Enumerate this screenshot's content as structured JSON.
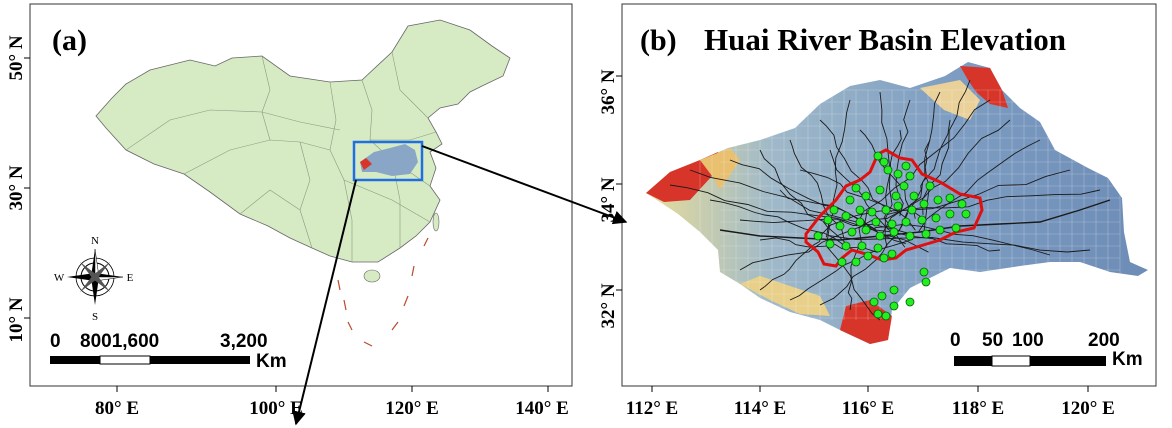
{
  "panel_a": {
    "label": "(a)",
    "x_ticks": [
      "80° E",
      "100° E",
      "120° E",
      "140° E"
    ],
    "y_ticks": [
      "50° N",
      "30° N",
      "10° N"
    ],
    "scale_labels": [
      "0",
      "8001,600",
      "3,200"
    ],
    "scale_unit": "Km",
    "compass": {
      "n": "N",
      "s": "S",
      "e": "E",
      "w": "W"
    },
    "colors": {
      "land": "#d6ebc4",
      "border": "#555555",
      "highlight_box": "#1f6fe0"
    }
  },
  "panel_b": {
    "label": "(b)",
    "title": "Huai River Basin Elevation",
    "x_ticks": [
      "112° E",
      "114° E",
      "116° E",
      "118° E",
      "120° E"
    ],
    "y_ticks": [
      "36° N",
      "34° N",
      "32° N"
    ],
    "scale_labels": [
      "0",
      "50",
      "100",
      "200"
    ],
    "scale_unit": "Km",
    "colors": {
      "low_elevation": "#6f8fb8",
      "high_elevation": "#d8352a",
      "stations": "#22ee22",
      "subbasin_outline": "#e01010",
      "rivers": "#1a1a1a"
    }
  }
}
